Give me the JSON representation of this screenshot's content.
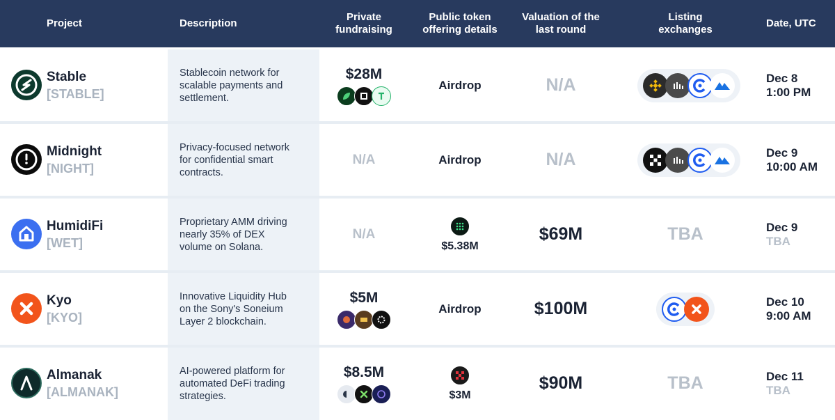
{
  "header": {
    "project": "Project",
    "description": "Description",
    "private_l1": "Private",
    "private_l2": "fundraising",
    "public_l1": "Public token",
    "public_l2": "offering details",
    "valuation_l1": "Valuation of the",
    "valuation_l2": "last round",
    "listing_l1": "Listing",
    "listing_l2": "exchanges",
    "date": "Date, UTC"
  },
  "rows": [
    {
      "name": "Stable",
      "ticker": "[STABLE]",
      "desc1": "Stablecoin network for",
      "desc2": "scalable payments and",
      "desc3": "settlement.",
      "private": "$28M",
      "public": "Airdrop",
      "valuation": "N/A",
      "date1": "Dec 8",
      "date2": "1:00 PM"
    },
    {
      "name": "Midnight",
      "ticker": "[NIGHT]",
      "desc1": "Privacy-focused network",
      "desc2": "for confidential smart",
      "desc3": "contracts.",
      "private": "N/A",
      "public": "Airdrop",
      "valuation": "N/A",
      "date1": "Dec 9",
      "date2": "10:00 AM"
    },
    {
      "name": "HumidiFi",
      "ticker": "[WET]",
      "desc1": "Proprietary AMM driving",
      "desc2": "nearly 35% of DEX",
      "desc3": "volume on Solana.",
      "private": "N/A",
      "public": "$5.38M",
      "valuation": "$69M",
      "listing": "TBA",
      "date1": "Dec 9",
      "date2": "TBA"
    },
    {
      "name": "Kyo",
      "ticker": "[KYO]",
      "desc1": "Innovative Liquidity Hub",
      "desc2": "on the Sony's Soneium",
      "desc3": "Layer 2 blockchain.",
      "private": "$5M",
      "public": "Airdrop",
      "valuation": "$100M",
      "date1": "Dec 10",
      "date2": "9:00 AM"
    },
    {
      "name": "Almanak",
      "ticker": "[ALMANAK]",
      "desc1": "AI-powered platform for",
      "desc2": "automated DeFi trading",
      "desc3": "strategies.",
      "private": "$8.5M",
      "public": "$3M",
      "valuation": "$90M",
      "listing": "TBA",
      "date1": "Dec 11",
      "date2": "TBA"
    }
  ],
  "icons": {
    "logos": [
      "stable-logo-icon",
      "midnight-logo-icon",
      "humidifi-logo-icon",
      "kyo-logo-icon",
      "almanak-logo-icon"
    ],
    "exchanges": [
      "binance-icon",
      "bitget-icon",
      "coinex-icon",
      "mexc-icon",
      "okx-icon",
      "kyo-exchange-icon"
    ],
    "colors": {
      "header": "#283a5e",
      "stable": "#0d3a2e",
      "midnight": "#0b0b0b",
      "humidifi": "#3b6ff0",
      "kyo": "#f2541b",
      "almanak": "#0e2a2a",
      "binance": "#f0b90b",
      "coinex": "#1f5cf0",
      "mexc": "#1972e2"
    }
  }
}
